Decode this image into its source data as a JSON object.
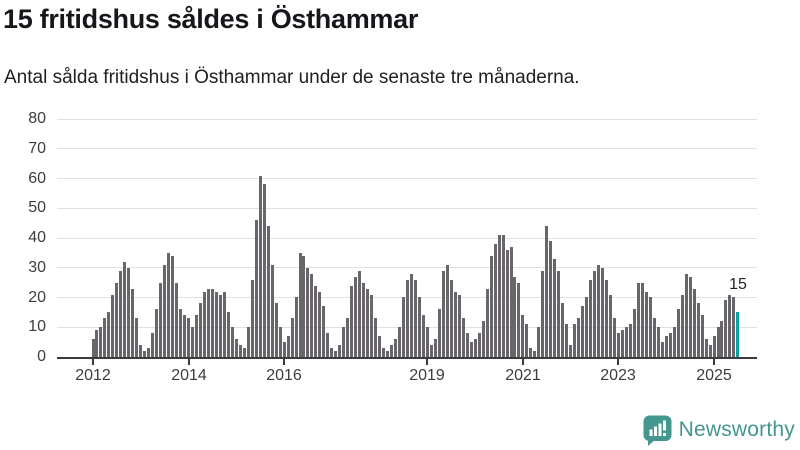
{
  "chart_data": {
    "type": "bar",
    "title": "15 fritidshus såldes i Östhammar",
    "subtitle": "Antal sålda fritidshus i Östhammar under de senaste tre månaderna.",
    "x_start": "2012-01",
    "x_end": "2025-07",
    "frequency": "monthly",
    "values": [
      6,
      9,
      10,
      13,
      15,
      21,
      25,
      29,
      32,
      30,
      23,
      13,
      4,
      2,
      3,
      8,
      16,
      25,
      31,
      35,
      34,
      25,
      16,
      14,
      13,
      10,
      14,
      18,
      22,
      23,
      23,
      22,
      21,
      22,
      15,
      10,
      6,
      4,
      3,
      10,
      26,
      46,
      61,
      58,
      44,
      31,
      18,
      10,
      5,
      7,
      13,
      20,
      35,
      34,
      30,
      28,
      24,
      22,
      17,
      8,
      3,
      2,
      4,
      10,
      13,
      24,
      27,
      29,
      25,
      23,
      21,
      13,
      7,
      3,
      2,
      4,
      6,
      10,
      20,
      26,
      28,
      26,
      20,
      14,
      10,
      4,
      6,
      16,
      29,
      31,
      26,
      22,
      21,
      13,
      8,
      5,
      6,
      8,
      12,
      23,
      34,
      38,
      41,
      41,
      36,
      37,
      27,
      25,
      14,
      11,
      3,
      2,
      10,
      29,
      44,
      39,
      33,
      29,
      18,
      11,
      4,
      11,
      13,
      17,
      20,
      26,
      29,
      31,
      30,
      26,
      21,
      13,
      8,
      9,
      10,
      11,
      16,
      25,
      25,
      22,
      20,
      13,
      10,
      5,
      7,
      8,
      10,
      16,
      21,
      28,
      27,
      23,
      18,
      14,
      6,
      4,
      7,
      10,
      12,
      19,
      21,
      20,
      15
    ],
    "ylim": [
      0,
      80
    ],
    "yticks": [
      0,
      10,
      20,
      30,
      40,
      50,
      60,
      70,
      80
    ],
    "xticks": [
      {
        "label": "2012",
        "month_index": 0
      },
      {
        "label": "2014",
        "month_index": 24
      },
      {
        "label": "2016",
        "month_index": 48
      },
      {
        "label": "2019",
        "month_index": 84
      },
      {
        "label": "2021",
        "month_index": 108
      },
      {
        "label": "2023",
        "month_index": 132
      },
      {
        "label": "2025",
        "month_index": 156
      }
    ],
    "grid": true,
    "legend": "none",
    "bar_color": "#68656b",
    "highlight": {
      "index": 162,
      "value": 15,
      "label": "15",
      "color": "#0aa2a2"
    }
  },
  "footer": {
    "brand": "Newsworthy"
  }
}
